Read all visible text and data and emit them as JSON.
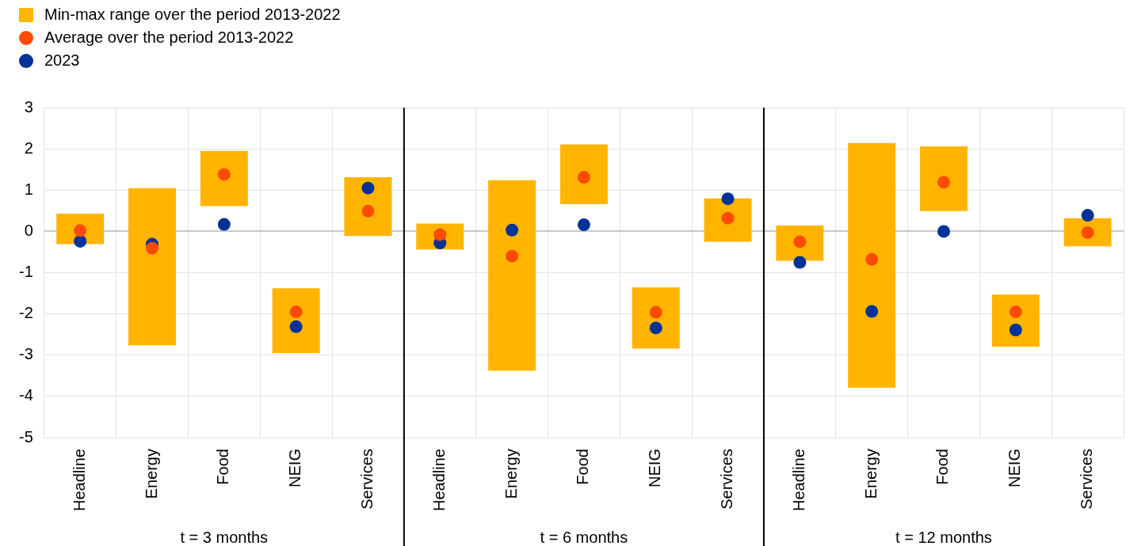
{
  "chart_data": {
    "type": "bar",
    "categories": [
      "Headline",
      "Energy",
      "Food",
      "NEIG",
      "Services",
      "Headline",
      "Energy",
      "Food",
      "NEIG",
      "Services",
      "Headline",
      "Energy",
      "Food",
      "NEIG",
      "Services"
    ],
    "series": [
      {
        "name": "Min-max range over the period 2013-2022",
        "color": "#ffb400",
        "base": [
          -0.31,
          -2.76,
          0.61,
          -2.95,
          -0.11,
          -0.44,
          -3.38,
          0.66,
          -2.84,
          -0.25,
          -0.71,
          -3.79,
          0.49,
          -2.8,
          -0.36
        ],
        "values": [
          0.74,
          3.81,
          1.34,
          1.57,
          1.42,
          0.63,
          4.62,
          1.45,
          1.48,
          1.05,
          0.85,
          5.93,
          1.57,
          1.27,
          0.68
        ]
      },
      {
        "name": "Average over the period 2013-2022",
        "type": "scatter",
        "color": "#ff4b00",
        "values": [
          0.02,
          -0.41,
          1.38,
          -1.95,
          0.49,
          -0.08,
          -0.6,
          1.31,
          -1.96,
          0.32,
          -0.25,
          -0.68,
          1.19,
          -1.95,
          -0.03
        ]
      },
      {
        "name": "2023",
        "type": "scatter",
        "color": "#003299",
        "values": [
          -0.24,
          -0.31,
          0.17,
          -2.31,
          1.05,
          -0.28,
          0.03,
          0.16,
          -2.34,
          0.79,
          -0.75,
          -1.94,
          0,
          -2.39,
          0.39
        ]
      }
    ],
    "ylim": [
      -5,
      3
    ],
    "yticks": [
      -5,
      -4,
      -3,
      -2,
      -1,
      0,
      1,
      2,
      3
    ],
    "grid": true,
    "legend": "top left",
    "marker": "circle",
    "annotations": [
      "t = 3 months",
      "t = 6 months",
      "t = 12 months"
    ]
  }
}
